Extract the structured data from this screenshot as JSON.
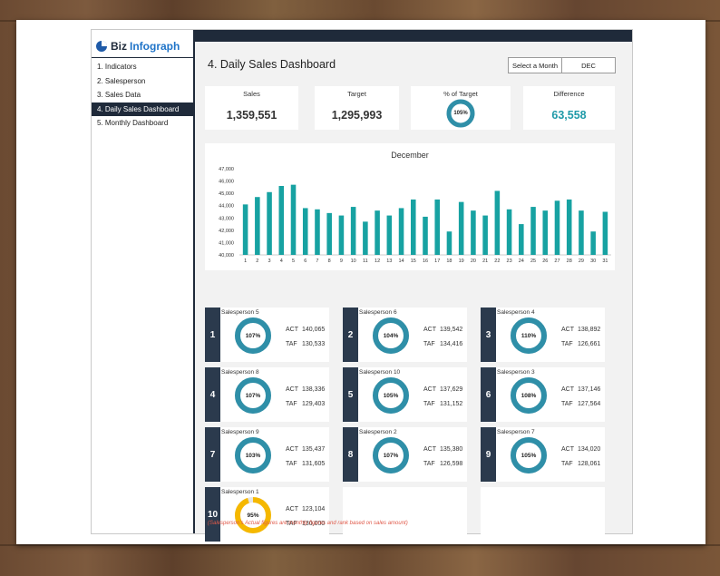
{
  "logo": {
    "word1": "Biz",
    "word2": "Infograph"
  },
  "nav": {
    "items": [
      "1. Indicators",
      "2. Salesperson",
      "3. Sales Data",
      "4. Daily Sales Dashboard",
      "5. Monthly Dashboard"
    ],
    "active_index": 3
  },
  "header": {
    "title": "4. Daily Sales Dashboard",
    "month_label": "Select a Month",
    "month_value": "DEC"
  },
  "kpis": {
    "sales": {
      "label": "Sales",
      "value": "1,359,551"
    },
    "target": {
      "label": "Target",
      "value": "1,295,993"
    },
    "pct": {
      "label": "% of Target",
      "value": "105%",
      "fraction": 1.0
    },
    "difference": {
      "label": "Difference",
      "value": "63,558"
    }
  },
  "colors": {
    "teal": "#17a2a2",
    "ring": "#2f8fa8",
    "yellow": "#f5b800",
    "dark": "#1f2a3a",
    "diff": "#1f9aa8"
  },
  "chart_data": {
    "type": "bar",
    "title": "December",
    "categories": [
      "1",
      "2",
      "3",
      "4",
      "5",
      "6",
      "7",
      "8",
      "9",
      "10",
      "11",
      "12",
      "13",
      "14",
      "15",
      "16",
      "17",
      "18",
      "19",
      "20",
      "21",
      "22",
      "23",
      "24",
      "25",
      "26",
      "27",
      "28",
      "29",
      "30",
      "31"
    ],
    "values": [
      44100,
      44700,
      45100,
      45600,
      45700,
      43800,
      43700,
      43400,
      43200,
      43900,
      42700,
      43600,
      43200,
      43800,
      44500,
      43100,
      44500,
      41900,
      44300,
      43600,
      43200,
      45200,
      43700,
      42500,
      43900,
      43600,
      44400,
      44500,
      43600,
      41900,
      43500
    ],
    "ylim": [
      40000,
      47000
    ],
    "yticks": [
      "40,000",
      "41,000",
      "42,000",
      "43,000",
      "44,000",
      "45,000",
      "46,000",
      "47,000"
    ],
    "grid": false
  },
  "salespeople": [
    {
      "rank": "1",
      "name": "Salesperson 5",
      "pct": "107%",
      "act_label": "ACT",
      "act": "140,065",
      "taf_label": "TAF",
      "taf": "130,533",
      "fraction": 1.0,
      "color": "#2f8fa8"
    },
    {
      "rank": "2",
      "name": "Salesperson 6",
      "pct": "104%",
      "act_label": "ACT",
      "act": "139,542",
      "taf_label": "TAF",
      "taf": "134,416",
      "fraction": 1.0,
      "color": "#2f8fa8"
    },
    {
      "rank": "3",
      "name": "Salesperson 4",
      "pct": "110%",
      "act_label": "ACT",
      "act": "138,892",
      "taf_label": "TAF",
      "taf": "126,661",
      "fraction": 1.0,
      "color": "#2f8fa8"
    },
    {
      "rank": "4",
      "name": "Salesperson 8",
      "pct": "107%",
      "act_label": "ACT",
      "act": "138,336",
      "taf_label": "TAF",
      "taf": "129,403",
      "fraction": 1.0,
      "color": "#2f8fa8"
    },
    {
      "rank": "5",
      "name": "Salesperson 10",
      "pct": "105%",
      "act_label": "ACT",
      "act": "137,629",
      "taf_label": "TAF",
      "taf": "131,152",
      "fraction": 1.0,
      "color": "#2f8fa8"
    },
    {
      "rank": "6",
      "name": "Salesperson 3",
      "pct": "108%",
      "act_label": "ACT",
      "act": "137,146",
      "taf_label": "TAF",
      "taf": "127,564",
      "fraction": 1.0,
      "color": "#2f8fa8"
    },
    {
      "rank": "7",
      "name": "Salesperson 9",
      "pct": "103%",
      "act_label": "ACT",
      "act": "135,437",
      "taf_label": "TAF",
      "taf": "131,605",
      "fraction": 1.0,
      "color": "#2f8fa8"
    },
    {
      "rank": "8",
      "name": "Salesperson 2",
      "pct": "107%",
      "act_label": "ACT",
      "act": "135,380",
      "taf_label": "TAF",
      "taf": "126,598",
      "fraction": 1.0,
      "color": "#2f8fa8"
    },
    {
      "rank": "9",
      "name": "Salesperson 7",
      "pct": "105%",
      "act_label": "ACT",
      "act": "134,020",
      "taf_label": "TAF",
      "taf": "128,061",
      "fraction": 1.0,
      "color": "#2f8fa8"
    },
    {
      "rank": "10",
      "name": "Salesperson 1",
      "pct": "95%",
      "act_label": "ACT",
      "act": "123,104",
      "taf_label": "TAF",
      "taf": "130,000",
      "fraction": 0.95,
      "color": "#f5b800"
    }
  ],
  "footer": "(Salesperson's Actual figures are monthly figures and rank based on sales amount)"
}
